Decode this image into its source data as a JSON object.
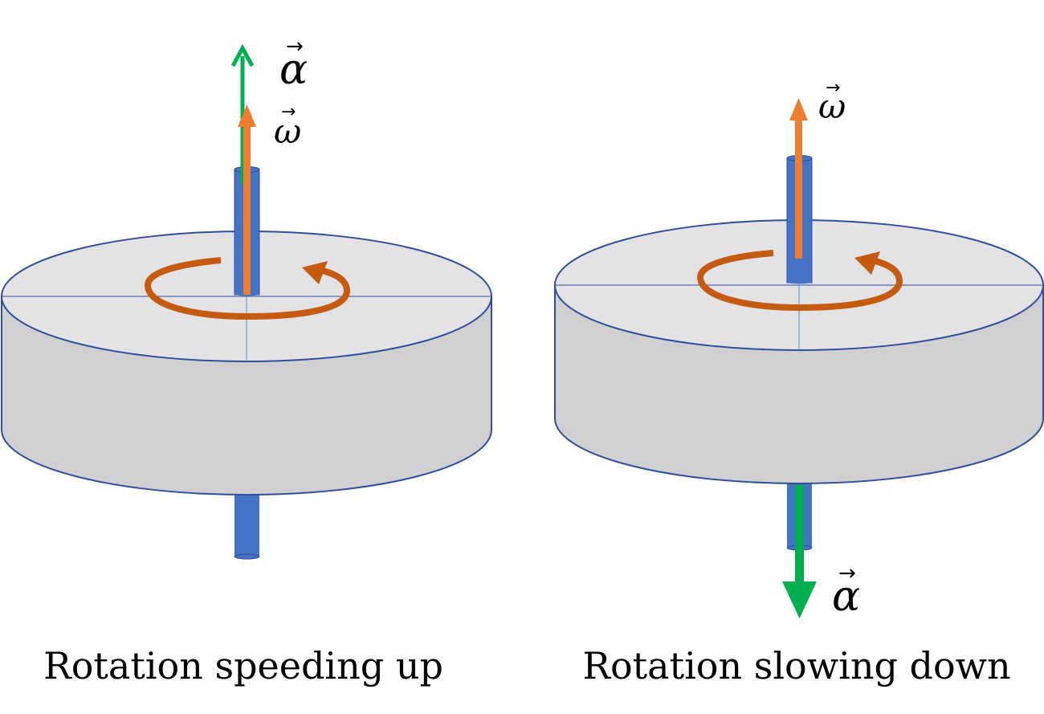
{
  "colors": {
    "disk_top": "#e3e3e5",
    "disk_side": "#d0cfd1",
    "disk_outline": "#2f4f9a",
    "axle": "#4472c4",
    "omega_arrow": "#ed7d31",
    "alpha_arrow": "#00b050",
    "rotation_arrow": "#c55a11"
  },
  "left": {
    "caption": "Rotation speeding up",
    "alpha_symbol": "α",
    "omega_symbol": "ω",
    "vector_mark": "→",
    "alpha_direction": "up",
    "omega_direction": "up"
  },
  "right": {
    "caption": "Rotation slowing down",
    "alpha_symbol": "α",
    "omega_symbol": "ω",
    "vector_mark": "→",
    "alpha_direction": "down",
    "omega_direction": "up"
  }
}
